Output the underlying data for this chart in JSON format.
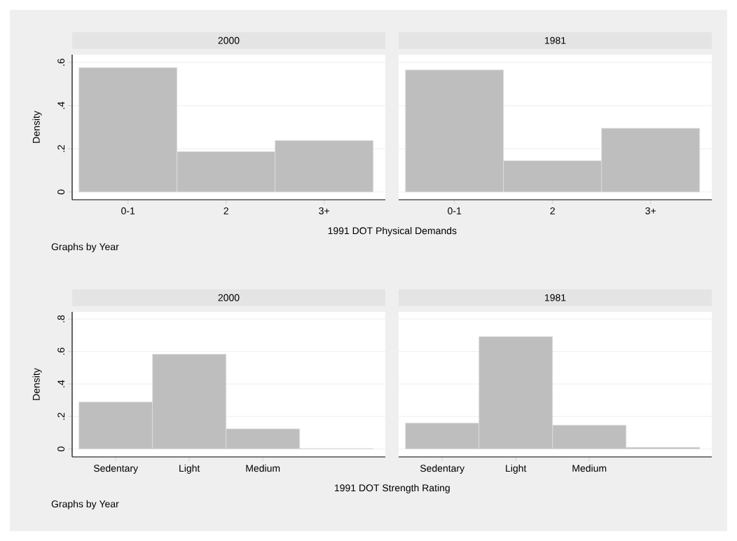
{
  "chart_data": [
    {
      "type": "bar",
      "title": "2000",
      "xlabel": "1991 DOT Physical Demands",
      "ylabel": "Density",
      "categories": [
        "0-1",
        "2",
        "3+"
      ],
      "values": [
        0.576,
        0.187,
        0.238
      ],
      "color": "#bebebe",
      "ylim": [
        -0.036,
        0.636
      ],
      "yticks": [
        {
          "value": 0,
          "label": "0"
        },
        {
          "value": 0.2,
          "label": ".2"
        },
        {
          "value": 0.4,
          "label": ".4"
        },
        {
          "value": 0.6,
          "label": ".6"
        }
      ],
      "grid": "y",
      "annotations": [
        "Graphs by Year"
      ]
    },
    {
      "type": "bar",
      "title": "1981",
      "categories": [
        "0-1",
        "2",
        "3+"
      ],
      "values": [
        0.565,
        0.145,
        0.295
      ],
      "color": "#bebebe",
      "ylim": [
        -0.036,
        0.636
      ],
      "yticks": [
        0,
        0.2,
        0.4,
        0.6
      ],
      "grid": "y",
      "tick_labels": "x"
    },
    {
      "type": "bar",
      "title": "2000",
      "xlabel": "1991 DOT Strength Rating",
      "ylabel": "Density",
      "categories": [
        "Sedentary",
        "Light",
        "Medium",
        null
      ],
      "values": [
        0.289,
        0.583,
        0.124,
        0.003
      ],
      "color": "#bebebe",
      "ylim": [
        -0.049,
        0.844
      ],
      "yticks": [
        {
          "value": 0,
          "label": "0"
        },
        {
          "value": 0.2,
          "label": ".2"
        },
        {
          "value": 0.4,
          "label": ".4"
        },
        {
          "value": 0.6,
          "label": ".6"
        },
        {
          "value": 0.8,
          "label": ".8"
        }
      ],
      "grid": "y",
      "annotations": [
        "Graphs by Year"
      ]
    },
    {
      "type": "bar",
      "title": "1981",
      "categories": [
        "Sedentary",
        "Light",
        "Medium",
        null
      ],
      "values": [
        0.159,
        0.692,
        0.146,
        0.01
      ],
      "color": "#bebebe",
      "ylim": [
        -0.049,
        0.844
      ],
      "yticks": [
        0,
        0.2,
        0.4,
        0.6,
        0.8
      ],
      "grid": "y",
      "tick_labels": "x"
    }
  ]
}
